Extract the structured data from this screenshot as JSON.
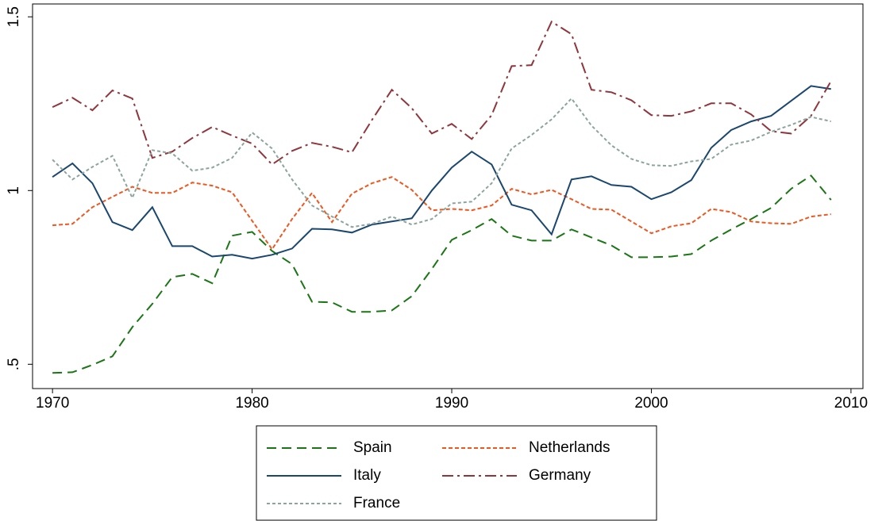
{
  "chart_data": {
    "type": "line",
    "x": [
      1970,
      1971,
      1972,
      1973,
      1974,
      1975,
      1976,
      1977,
      1978,
      1979,
      1980,
      1981,
      1982,
      1983,
      1984,
      1985,
      1986,
      1987,
      1988,
      1989,
      1990,
      1991,
      1992,
      1993,
      1994,
      1995,
      1996,
      1997,
      1998,
      1999,
      2000,
      2001,
      2002,
      2003,
      2004,
      2005,
      2006,
      2007,
      2008,
      2009
    ],
    "xlim": [
      1969,
      2010.6
    ],
    "xticks": [
      1970,
      1980,
      1990,
      2000,
      2010
    ],
    "ylim": [
      0.43,
      1.537
    ],
    "yticks": [
      {
        "value": 0.5,
        "label": ".5"
      },
      1,
      1.5
    ],
    "legend": "bottom",
    "series": [
      {
        "name": "Spain",
        "color": "#1a7614",
        "dash": "long",
        "values": [
          0.475,
          0.477,
          0.498,
          0.523,
          0.607,
          0.674,
          0.751,
          0.76,
          0.733,
          0.87,
          0.881,
          0.826,
          0.788,
          0.68,
          0.678,
          0.651,
          0.651,
          0.655,
          0.696,
          0.774,
          0.858,
          0.886,
          0.918,
          0.87,
          0.856,
          0.856,
          0.888,
          0.865,
          0.842,
          0.808,
          0.808,
          0.81,
          0.817,
          0.856,
          0.888,
          0.918,
          0.95,
          1.005,
          1.043,
          0.973
        ]
      },
      {
        "name": "Netherlands",
        "color": "#f0561e",
        "dash": "short",
        "values": [
          0.9,
          0.904,
          0.952,
          0.982,
          1.011,
          0.993,
          0.993,
          1.023,
          1.014,
          0.995,
          0.913,
          0.831,
          0.918,
          0.993,
          0.909,
          0.991,
          1.021,
          1.039,
          1.002,
          0.943,
          0.947,
          0.943,
          0.957,
          1.005,
          0.989,
          1.002,
          0.975,
          0.947,
          0.945,
          0.911,
          0.877,
          0.897,
          0.906,
          0.947,
          0.938,
          0.911,
          0.906,
          0.904,
          0.925,
          0.932
        ]
      },
      {
        "name": "Italy",
        "color": "#1a476f",
        "dash": "solid",
        "values": [
          1.039,
          1.078,
          1.021,
          0.909,
          0.886,
          0.952,
          0.84,
          0.84,
          0.81,
          0.815,
          0.804,
          0.815,
          0.833,
          0.89,
          0.888,
          0.879,
          0.902,
          0.911,
          0.92,
          1.0,
          1.066,
          1.112,
          1.075,
          0.959,
          0.943,
          0.874,
          1.032,
          1.041,
          1.016,
          1.011,
          0.975,
          0.995,
          1.03,
          1.123,
          1.174,
          1.199,
          1.215,
          1.258,
          1.301,
          1.292
        ]
      },
      {
        "name": "Germany",
        "color": "#90353b",
        "dash": "dashdot",
        "values": [
          1.24,
          1.267,
          1.231,
          1.288,
          1.265,
          1.094,
          1.112,
          1.151,
          1.183,
          1.158,
          1.135,
          1.075,
          1.114,
          1.137,
          1.126,
          1.11,
          1.203,
          1.29,
          1.237,
          1.164,
          1.192,
          1.148,
          1.217,
          1.358,
          1.361,
          1.486,
          1.45,
          1.29,
          1.283,
          1.26,
          1.217,
          1.215,
          1.228,
          1.251,
          1.251,
          1.219,
          1.171,
          1.164,
          1.215,
          1.315
        ]
      },
      {
        "name": "France",
        "color": "#8ca59c",
        "dash": "dot",
        "values": [
          1.089,
          1.032,
          1.068,
          1.1,
          0.979,
          1.116,
          1.107,
          1.057,
          1.066,
          1.094,
          1.167,
          1.121,
          1.032,
          0.957,
          0.925,
          0.895,
          0.904,
          0.925,
          0.902,
          0.918,
          0.963,
          0.968,
          1.021,
          1.121,
          1.16,
          1.205,
          1.265,
          1.187,
          1.13,
          1.091,
          1.073,
          1.071,
          1.084,
          1.091,
          1.132,
          1.144,
          1.169,
          1.189,
          1.212,
          1.199
        ]
      }
    ]
  }
}
